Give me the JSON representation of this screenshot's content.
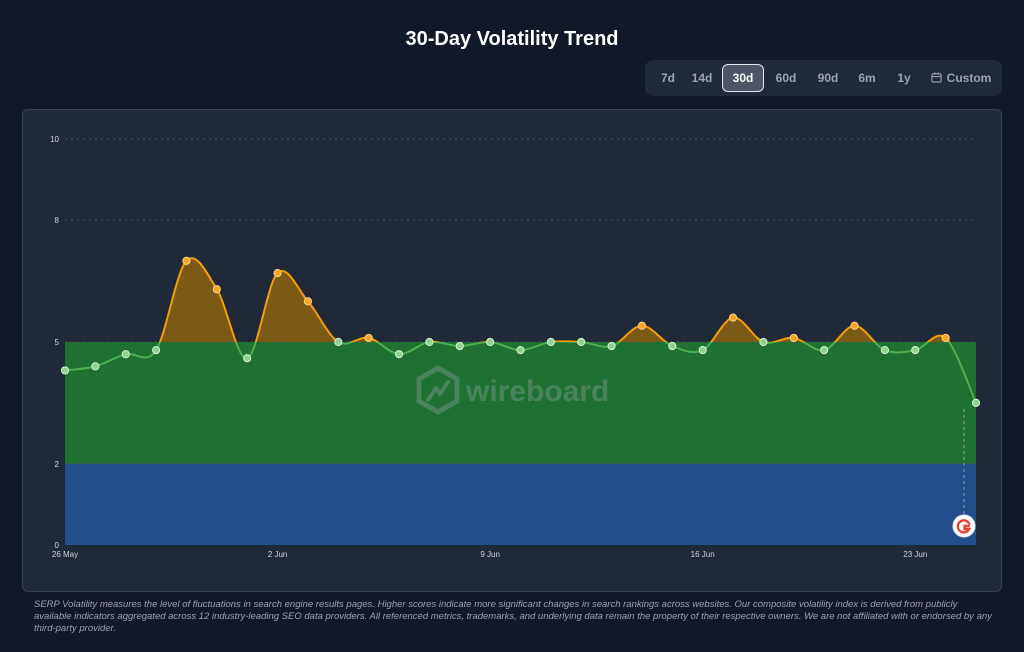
{
  "header": {
    "title": "30-Day Volatility Trend"
  },
  "range_selector": {
    "options": [
      "7d",
      "14d",
      "30d",
      "60d",
      "90d",
      "6m",
      "1y",
      "Custom"
    ],
    "active": "30d"
  },
  "watermark": {
    "text": "wireboard"
  },
  "colors": {
    "background": "#111827",
    "panel": "#1f2937",
    "low_band": "#234e8c",
    "medium_band": "#1e7130",
    "high_fill": "#7a5a14",
    "line_normal": "#4caf50",
    "line_high": "#f59e0b"
  },
  "google_marker": {
    "icon": "google-icon"
  },
  "chart_data": {
    "type": "area",
    "title": "30-Day Volatility Trend",
    "x": [
      "26 May",
      "27 May",
      "28 May",
      "29 May",
      "30 May",
      "31 May",
      "1 Jun",
      "2 Jun",
      "3 Jun",
      "4 Jun",
      "5 Jun",
      "6 Jun",
      "7 Jun",
      "8 Jun",
      "9 Jun",
      "10 Jun",
      "11 Jun",
      "12 Jun",
      "13 Jun",
      "14 Jun",
      "15 Jun",
      "16 Jun",
      "17 Jun",
      "18 Jun",
      "19 Jun",
      "20 Jun",
      "21 Jun",
      "22 Jun",
      "23 Jun",
      "24 Jun",
      "25 Jun"
    ],
    "values": [
      4.3,
      4.4,
      4.7,
      4.8,
      7.0,
      6.3,
      4.6,
      6.7,
      6.0,
      5.0,
      5.1,
      4.7,
      5.0,
      4.9,
      5.0,
      4.8,
      5.0,
      5.0,
      4.9,
      5.4,
      4.9,
      4.8,
      5.6,
      5.0,
      5.1,
      4.8,
      5.4,
      4.8,
      4.8,
      5.1,
      3.5
    ],
    "x_ticks": [
      "26 May",
      "2 Jun",
      "9 Jun",
      "16 Jun",
      "23 Jun"
    ],
    "y_ticks": [
      0,
      2,
      5,
      8,
      10
    ],
    "ylim": [
      0,
      10
    ],
    "bands": [
      {
        "from": 0,
        "to": 2,
        "color": "#234e8c"
      },
      {
        "from": 2,
        "to": 5,
        "color": "#1e7130"
      }
    ],
    "high_threshold": 5,
    "grid": true,
    "legend": "none"
  },
  "disclaimer": "SERP Volatility measures the level of fluctuations in search engine results pages. Higher scores indicate more significant changes in search rankings across websites. Our composite volatility index is derived from publicly available indicators aggregated across 12 industry-leading SEO data providers. All referenced metrics, trademarks, and underlying data remain the property of their respective owners. We are not affiliated with or endorsed by any third-party provider."
}
